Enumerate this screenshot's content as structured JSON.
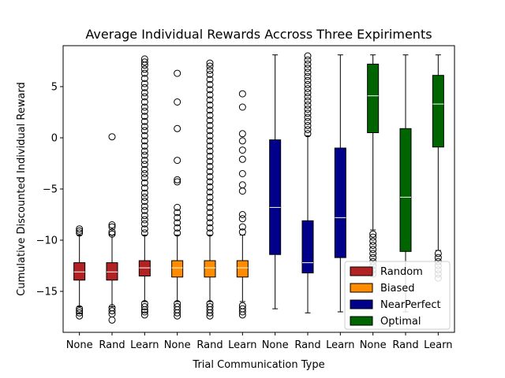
{
  "chart_data": {
    "type": "box",
    "title": "Average Individual Rewards Accross Three Expiriments",
    "xlabel": "Trial Communication Type",
    "ylabel": "Cumulative Discounted Individual Reward",
    "ylim": [
      -19,
      9
    ],
    "yticks": [
      5,
      0,
      -5,
      -10,
      -15
    ],
    "ytick_labels": [
      "5",
      "0",
      "−5",
      "−10",
      "−15"
    ],
    "categories": [
      "None",
      "Rand",
      "Learn",
      "None",
      "Rand",
      "Learn",
      "None",
      "Rand",
      "Learn",
      "None",
      "Rand",
      "Learn"
    ],
    "legend_position": "lower right",
    "grid": false,
    "series": [
      {
        "name": "Random",
        "color": "#b22222",
        "boxes": [
          {
            "whislo": -16.5,
            "q1": -13.9,
            "med": -13.1,
            "q3": -12.2,
            "whishi": -9.5,
            "fliers": [
              -17.4,
              -17.1,
              -16.9,
              -16.7,
              -9.3,
              -9.1,
              -8.9
            ]
          },
          {
            "whislo": -16.5,
            "q1": -13.9,
            "med": -13.1,
            "q3": -12.2,
            "whishi": -9.5,
            "fliers": [
              -17.8,
              -17.2,
              -16.9,
              -16.6,
              -9.4,
              -9.2,
              -8.7,
              -8.5,
              0.1
            ]
          },
          {
            "whislo": -16.0,
            "q1": -13.5,
            "med": -12.7,
            "q3": -12.0,
            "whishi": -9.5,
            "fliers": [
              -17.3,
              -17.0,
              -16.8,
              -16.5,
              -16.2,
              -9.3,
              -8.9,
              -8.4,
              -8.0,
              -7.6,
              -7.1,
              -6.7,
              -6.2,
              -5.8,
              -5.4,
              -4.9,
              -4.4,
              -3.9,
              -3.5,
              -3.1,
              -2.6,
              -2.2,
              -1.7,
              -1.3,
              -0.8,
              -0.3,
              0.2,
              0.7,
              1.1,
              1.6,
              2.1,
              2.6,
              3.0,
              3.5,
              4.0,
              4.4,
              4.9,
              5.3,
              5.8,
              6.3,
              6.7,
              7.1,
              7.4,
              7.7
            ]
          }
        ]
      },
      {
        "name": "Biased",
        "color": "#ff8c00",
        "boxes": [
          {
            "whislo": -16.0,
            "q1": -13.6,
            "med": -12.7,
            "q3": -12.0,
            "whishi": -9.5,
            "fliers": [
              -17.4,
              -17.1,
              -16.8,
              -16.5,
              -16.2,
              -9.3,
              -8.8,
              -8.3,
              -7.8,
              -7.3,
              -6.8,
              -4.3,
              -4.1,
              -2.2,
              0.9,
              3.5,
              6.3
            ]
          },
          {
            "whislo": -16.0,
            "q1": -13.6,
            "med": -12.7,
            "q3": -12.0,
            "whishi": -9.5,
            "fliers": [
              -17.4,
              -17.1,
              -16.8,
              -16.5,
              -16.2,
              -9.3,
              -8.8,
              -8.3,
              -7.8,
              -7.3,
              -6.8,
              -6.3,
              -5.8,
              -5.3,
              -4.8,
              -4.3,
              -3.8,
              -3.3,
              -2.8,
              -2.3,
              -1.8,
              -1.3,
              -0.8,
              -0.3,
              0.2,
              0.7,
              1.2,
              1.7,
              2.2,
              2.7,
              3.2,
              3.7,
              4.2,
              4.7,
              5.2,
              5.7,
              6.2,
              6.6,
              7.0,
              7.3
            ]
          },
          {
            "whislo": -16.0,
            "q1": -13.6,
            "med": -12.7,
            "q3": -12.0,
            "whishi": -9.5,
            "fliers": [
              -17.3,
              -17.0,
              -16.7,
              -16.4,
              -9.2,
              -8.7,
              -7.9,
              -7.5,
              -5.2,
              -4.6,
              -3.5,
              -2.1,
              -1.2,
              -0.3,
              0.4,
              3.0,
              4.3
            ]
          }
        ]
      },
      {
        "name": "NearPerfect",
        "color": "#00008b",
        "boxes": [
          {
            "whislo": -16.7,
            "q1": -11.4,
            "med": -6.8,
            "q3": -0.2,
            "whishi": 8.1,
            "fliers": []
          },
          {
            "whislo": -17.1,
            "q1": -13.2,
            "med": -12.2,
            "q3": -8.1,
            "whishi": 0.2,
            "fliers": [
              0.4,
              0.8,
              1.2,
              1.6,
              2.0,
              2.4,
              2.8,
              3.2,
              3.6,
              4.0,
              4.4,
              4.8,
              5.2,
              5.6,
              6.0,
              6.4,
              6.8,
              7.2,
              7.6,
              8.0
            ]
          },
          {
            "whislo": -17.0,
            "q1": -11.7,
            "med": -7.8,
            "q3": -1.0,
            "whishi": 8.1,
            "fliers": []
          }
        ]
      },
      {
        "name": "Optimal",
        "color": "#006400",
        "boxes": [
          {
            "whislo": -9.0,
            "q1": 0.5,
            "med": 4.1,
            "q3": 7.2,
            "whishi": 8.1,
            "fliers": [
              -13.3,
              -12.9,
              -12.5,
              -12.1,
              -11.7,
              -11.3,
              -10.9,
              -10.5,
              -10.1,
              -9.7,
              -9.4
            ]
          },
          {
            "whislo": -17.0,
            "q1": -11.1,
            "med": -5.8,
            "q3": 0.9,
            "whishi": 8.1,
            "fliers": []
          },
          {
            "whislo": -11.0,
            "q1": -0.9,
            "med": 3.3,
            "q3": 6.1,
            "whishi": 8.1,
            "fliers": [
              -13.7,
              -13.3,
              -12.9,
              -12.5,
              -12.1,
              -11.7,
              -11.3
            ]
          }
        ]
      }
    ]
  }
}
